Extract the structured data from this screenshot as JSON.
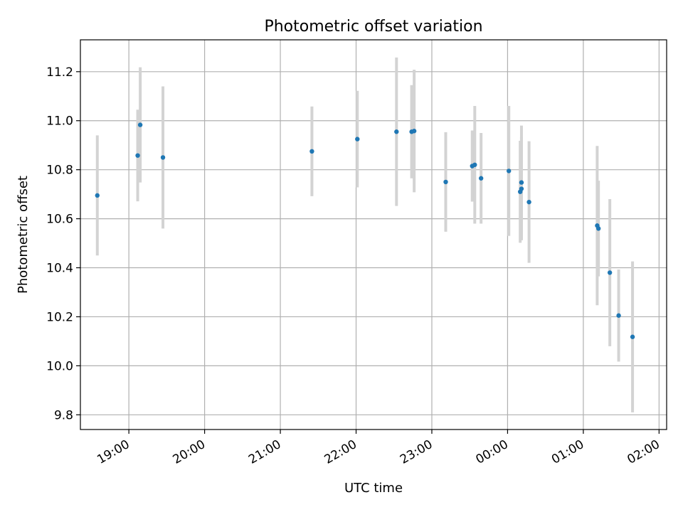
{
  "chart_data": {
    "type": "scatter",
    "title": "Photometric offset variation",
    "xlabel": "UTC time",
    "ylabel": "Photometric offset",
    "grid": true,
    "x_ticks": [
      "19:00",
      "20:00",
      "21:00",
      "22:00",
      "23:00",
      "00:00",
      "01:00",
      "02:00"
    ],
    "x_tick_hours": [
      19,
      20,
      21,
      22,
      23,
      24,
      25,
      26
    ],
    "xlim_hours": [
      18.36,
      26.1
    ],
    "y_ticks": [
      "9.8",
      "10.0",
      "10.2",
      "10.4",
      "10.6",
      "10.8",
      "11.0",
      "11.2"
    ],
    "ylim": [
      9.74,
      11.33
    ],
    "colors": {
      "point": "#1f77b4",
      "errorbar": "#d3d3d3",
      "grid": "#b0b0b0"
    },
    "points": [
      {
        "t": "18:35",
        "y": 10.695,
        "err": 0.245
      },
      {
        "t": "19:07",
        "y": 10.858,
        "err": 0.187
      },
      {
        "t": "19:09",
        "y": 10.983,
        "err": 0.235
      },
      {
        "t": "19:27",
        "y": 10.85,
        "err": 0.29
      },
      {
        "t": "21:25",
        "y": 10.875,
        "err": 0.183
      },
      {
        "t": "22:01",
        "y": 10.925,
        "err": 0.197
      },
      {
        "t": "22:32",
        "y": 10.955,
        "err": 0.303
      },
      {
        "t": "22:44",
        "y": 10.955,
        "err": 0.19
      },
      {
        "t": "22:46",
        "y": 10.958,
        "err": 0.25
      },
      {
        "t": "23:11",
        "y": 10.75,
        "err": 0.203
      },
      {
        "t": "23:32",
        "y": 10.815,
        "err": 0.145
      },
      {
        "t": "23:34",
        "y": 10.82,
        "err": 0.24
      },
      {
        "t": "23:39",
        "y": 10.765,
        "err": 0.185
      },
      {
        "t": "00:01",
        "y": 10.795,
        "err": 0.265
      },
      {
        "t": "00:10",
        "y": 10.71,
        "err": 0.208
      },
      {
        "t": "00:11",
        "y": 10.722,
        "err": 0.21
      },
      {
        "t": "00:11",
        "y": 10.748,
        "err": 0.232
      },
      {
        "t": "00:17",
        "y": 10.668,
        "err": 0.248
      },
      {
        "t": "01:11",
        "y": 10.572,
        "err": 0.325
      },
      {
        "t": "01:12",
        "y": 10.56,
        "err": 0.195
      },
      {
        "t": "01:21",
        "y": 10.38,
        "err": 0.3
      },
      {
        "t": "01:28",
        "y": 10.205,
        "err": 0.188
      },
      {
        "t": "01:39",
        "y": 10.118,
        "err": 0.308
      }
    ]
  }
}
